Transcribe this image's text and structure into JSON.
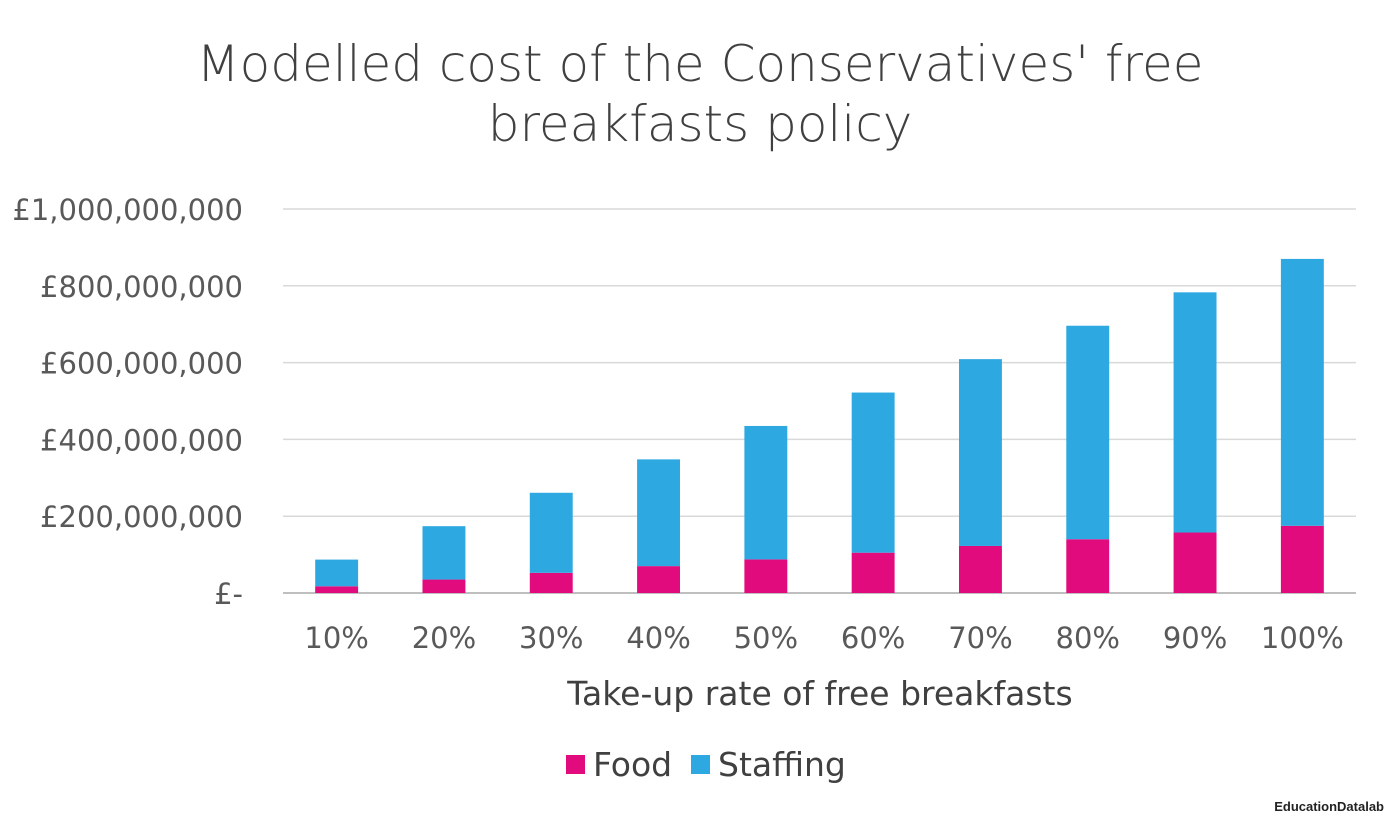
{
  "chart_data": {
    "type": "bar",
    "stacked": true,
    "title_lines": [
      "Modelled cost of the Conservatives' free",
      "breakfasts policy"
    ],
    "xlabel": "Take-up rate of free breakfasts",
    "ylabel": "",
    "categories": [
      "10%",
      "20%",
      "30%",
      "40%",
      "50%",
      "60%",
      "70%",
      "80%",
      "90%",
      "100%"
    ],
    "series": [
      {
        "name": "Food",
        "color": "#e20b7e",
        "values": [
          17500000,
          35000000,
          52500000,
          70000000,
          87500000,
          105000000,
          122500000,
          140000000,
          157500000,
          175000000
        ]
      },
      {
        "name": "Staffing",
        "color": "#2ea8e0",
        "values": [
          69500000,
          139000000,
          208500000,
          278000000,
          347500000,
          417000000,
          486500000,
          556000000,
          625500000,
          695000000
        ]
      }
    ],
    "ylim": [
      0,
      1000000000
    ],
    "yticks": [
      0,
      200000000,
      400000000,
      600000000,
      800000000,
      1000000000
    ],
    "ytick_labels": [
      "£-",
      "£200,000,000",
      "£400,000,000",
      "£600,000,000",
      "£800,000,000",
      "£1,000,000,000"
    ],
    "grid": true,
    "legend_position": "bottom"
  },
  "credit": "EducationDatalab"
}
